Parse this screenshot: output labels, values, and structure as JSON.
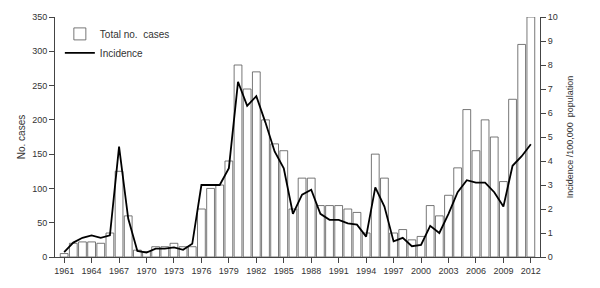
{
  "chart_data": {
    "type": "bar",
    "ylabel": "No. cases",
    "y2label": "Incidence /100,000  population",
    "x": [
      1961,
      1962,
      1963,
      1964,
      1965,
      1966,
      1967,
      1968,
      1969,
      1970,
      1971,
      1972,
      1973,
      1974,
      1975,
      1976,
      1977,
      1978,
      1979,
      1980,
      1981,
      1982,
      1983,
      1984,
      1985,
      1986,
      1987,
      1988,
      1989,
      1990,
      1991,
      1992,
      1993,
      1994,
      1995,
      1996,
      1997,
      1998,
      1999,
      2000,
      2001,
      2002,
      2003,
      2004,
      2005,
      2006,
      2007,
      2008,
      2009,
      2010,
      2011,
      2012
    ],
    "series": [
      {
        "name": "Total no.  cases",
        "type": "bar",
        "color": "#ffffff",
        "values": [
          5,
          20,
          22,
          22,
          20,
          35,
          125,
          60,
          10,
          8,
          15,
          15,
          20,
          15,
          15,
          70,
          100,
          105,
          140,
          280,
          245,
          270,
          200,
          165,
          155,
          70,
          115,
          115,
          75,
          75,
          75,
          70,
          65,
          35,
          150,
          115,
          35,
          40,
          25,
          30,
          75,
          60,
          90,
          130,
          215,
          155,
          200,
          175,
          110,
          230,
          310,
          350
        ]
      },
      {
        "name": "Incidence",
        "type": "line",
        "color": "#000000",
        "axis": "y2",
        "values": [
          0.2,
          0.6,
          0.8,
          0.9,
          0.8,
          0.9,
          4.6,
          1.6,
          0.25,
          0.18,
          0.35,
          0.35,
          0.4,
          0.3,
          0.55,
          3.0,
          3.0,
          3.0,
          3.7,
          7.3,
          6.3,
          6.7,
          5.6,
          4.4,
          3.7,
          1.8,
          2.6,
          2.8,
          1.8,
          1.55,
          1.55,
          1.4,
          1.35,
          0.85,
          2.9,
          2.1,
          0.65,
          0.8,
          0.45,
          0.5,
          1.3,
          1.0,
          1.8,
          2.7,
          3.2,
          3.1,
          3.1,
          2.7,
          2.1,
          3.8,
          4.2,
          4.7
        ]
      }
    ],
    "xlim": [
      1960,
      2013
    ],
    "xticks": [
      1961,
      1964,
      1967,
      1970,
      1973,
      1976,
      1979,
      1982,
      1985,
      1988,
      1991,
      1994,
      1997,
      2000,
      2003,
      2006,
      2009,
      2012
    ],
    "ylim": [
      0,
      350
    ],
    "yticks": [
      0,
      50,
      100,
      150,
      200,
      250,
      300,
      350
    ],
    "y2lim": [
      0,
      10.0
    ],
    "y2ticks": [
      0,
      1,
      2,
      3,
      4,
      5,
      6,
      7,
      8,
      9,
      10
    ],
    "grid": false,
    "legend": "upper left"
  }
}
